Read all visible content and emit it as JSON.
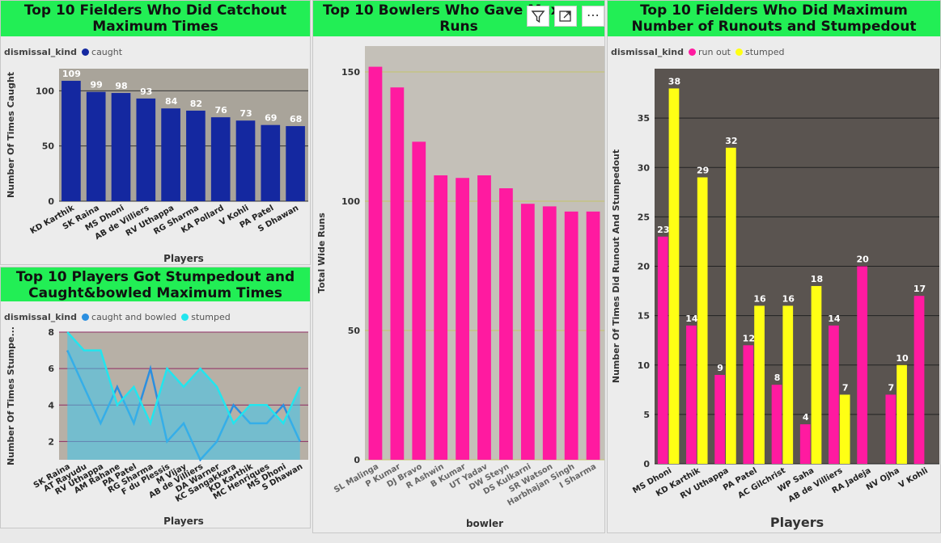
{
  "chart_data": [
    {
      "id": "c1",
      "type": "bar",
      "title": "Top 10 Fielders Who Did Catchout Maximum Times",
      "legend_title": "dismissal_kind",
      "xlabel": "Players",
      "ylabel": "Number Of Times Caught",
      "ylim": [
        0,
        120
      ],
      "yticks": [
        0,
        50,
        100
      ],
      "categories": [
        "KD Karthik",
        "SK Raina",
        "MS Dhoni",
        "AB de Villiers",
        "RV Uthappa",
        "RG Sharma",
        "KA Pollard",
        "V Kohli",
        "PA Patel",
        "S Dhawan"
      ],
      "series": [
        {
          "name": "caught",
          "color": "#1428a0",
          "values": [
            109,
            99,
            98,
            93,
            84,
            82,
            76,
            73,
            69,
            68
          ]
        }
      ]
    },
    {
      "id": "c2",
      "type": "line",
      "title": "Top 10 Players Got Stumpedout and Caught&bowled Maximum Times",
      "legend_title": "dismissal_kind",
      "xlabel": "Players",
      "ylabel": "Number Of Times Stumpe...",
      "ylim": [
        1,
        8
      ],
      "yticks": [
        2,
        4,
        6,
        8
      ],
      "categories": [
        "SK Raina",
        "AT Rayudu",
        "RV Uthappa",
        "AM Rahane",
        "PA Patel",
        "RG Sharma",
        "F du Plessis",
        "M Vijay",
        "AB de Villiers",
        "DA Warner",
        "KC Sangakkara",
        "KD Karthik",
        "MC Henriques",
        "MS Dhoni",
        "S Dhawan"
      ],
      "series": [
        {
          "name": "caught and bowled",
          "color": "#2b8fe0",
          "values": [
            7,
            5,
            3,
            5,
            3,
            6,
            2,
            3,
            1,
            2,
            4,
            3,
            3,
            4,
            2
          ]
        },
        {
          "name": "stumped",
          "color": "#22e5ee",
          "values": [
            8,
            7,
            7,
            4,
            5,
            3,
            6,
            5,
            6,
            5,
            3,
            4,
            4,
            3,
            5
          ]
        }
      ]
    },
    {
      "id": "c3",
      "type": "bar",
      "title": "Top 10 Bowlers Who Gave Maximum Wide Runs",
      "title_visible": "Top 10 Bowlers Who Gave Max",
      "title_line2": "Runs",
      "xlabel": "bowler",
      "ylabel": "Total Wide Runs",
      "ylim": [
        0,
        160
      ],
      "yticks": [
        0,
        50,
        100,
        150
      ],
      "categories": [
        "SL Malinga",
        "P Kumar",
        "DJ Bravo",
        "R Ashwin",
        "B Kumar",
        "UT Yadav",
        "DW Steyn",
        "DS Kulkarni",
        "SR Watson",
        "Harbhajan Singh",
        "I Sharma"
      ],
      "series": [
        {
          "name": "Total Wide Runs",
          "color": "#ff1aa0",
          "values": [
            152,
            144,
            123,
            110,
            109,
            110,
            105,
            99,
            98,
            96,
            96
          ]
        }
      ]
    },
    {
      "id": "c4",
      "type": "bar",
      "title": "Top 10 Fielders Who Did Maximum Number of Runouts and Stumpedout",
      "legend_title": "dismissal_kind",
      "xlabel": "Players",
      "ylabel": "Number Of Times Did Runout And Stumpedout",
      "ylim": [
        0,
        40
      ],
      "yticks": [
        0,
        5,
        10,
        15,
        20,
        25,
        30,
        35
      ],
      "categories": [
        "MS Dhoni",
        "KD Karthik",
        "RV Uthappa",
        "PA Patel",
        "AC Gilchrist",
        "WP Saha",
        "AB de Villiers",
        "RA Jadeja",
        "NV Ojha",
        "V Kohli"
      ],
      "series": [
        {
          "name": "run out",
          "color": "#ff1aa0",
          "values": [
            23,
            14,
            9,
            12,
            8,
            4,
            14,
            20,
            7,
            17
          ]
        },
        {
          "name": "stumped",
          "color": "#ffff14",
          "values": [
            38,
            29,
            32,
            16,
            16,
            18,
            7,
            null,
            10,
            null
          ]
        }
      ]
    }
  ],
  "toolbar": {
    "filter": "filter-icon",
    "focus": "focus-mode-icon",
    "more": "more-options-icon",
    "more_label": "⋯"
  }
}
